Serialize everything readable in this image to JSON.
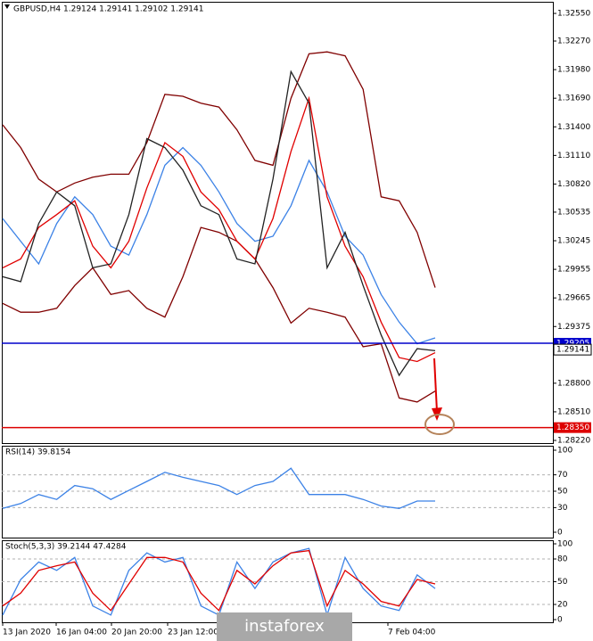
{
  "chart_data": [
    {
      "type": "line",
      "title": "GBPUSD,H4  1.29124 1.29141 1.29102 1.29141",
      "ylim": [
        1.28193,
        1.32668
      ],
      "yticks": [
        {
          "value": 1.3255,
          "label": "1.32550"
        },
        {
          "value": 1.3227,
          "label": "1.32270"
        },
        {
          "value": 1.3198,
          "label": "1.31980"
        },
        {
          "value": 1.3169,
          "label": "1.31690"
        },
        {
          "value": 1.314,
          "label": "1.31400"
        },
        {
          "value": 1.3111,
          "label": "1.31110"
        },
        {
          "value": 1.3082,
          "label": "1.30820"
        },
        {
          "value": 1.30535,
          "label": "1.30535"
        },
        {
          "value": 1.30245,
          "label": "1.30245"
        },
        {
          "value": 1.29955,
          "label": "1.29955"
        },
        {
          "value": 1.29665,
          "label": "1.29665"
        },
        {
          "value": 1.29375,
          "label": "1.29375"
        },
        {
          "value": 1.288,
          "label": "1.28800"
        },
        {
          "value": 1.2851,
          "label": "1.28510"
        },
        {
          "value": 1.2822,
          "label": "1.28220"
        }
      ],
      "grid": false,
      "levels": [
        {
          "value": 1.29205,
          "label": "1.29205",
          "color": "#0000cc"
        },
        {
          "value": 1.2835,
          "label": "1.28350",
          "color": "#dd0000"
        }
      ],
      "current": {
        "value": 1.29141,
        "label": "1.29141"
      },
      "series": [
        {
          "color": "#800000",
          "values": [
            1.3142,
            1.3119,
            1.3087,
            1.3074,
            1.3083,
            1.3089,
            1.3092,
            1.3092,
            1.3124,
            1.3173,
            1.3171,
            1.3164,
            1.316,
            1.3137,
            1.3106,
            1.3101,
            1.3169,
            1.3214,
            1.3216,
            1.3212,
            1.3178,
            1.3069,
            1.3065,
            1.3033,
            1.2977
          ]
        },
        {
          "color": "#800000",
          "values": [
            1.2961,
            1.2952,
            1.2952,
            1.2956,
            1.2979,
            1.2997,
            1.297,
            1.2974,
            1.2956,
            1.2947,
            1.2988,
            1.3038,
            1.3033,
            1.3024,
            1.3006,
            1.2977,
            1.2941,
            1.2956,
            1.2952,
            1.2947,
            1.2917,
            1.292,
            1.2865,
            1.2861,
            1.2872
          ]
        },
        {
          "color": "#3c82e6",
          "values": [
            1.3047,
            1.3024,
            1.3001,
            1.3042,
            1.3069,
            1.3051,
            1.3019,
            1.301,
            1.3051,
            1.3101,
            1.3119,
            1.3101,
            1.3074,
            1.3042,
            1.3024,
            1.3029,
            1.306,
            1.3106,
            1.3074,
            1.3029,
            1.301,
            1.297,
            1.2942,
            1.292,
            1.2926
          ]
        },
        {
          "color": "#e00000",
          "values": [
            1.2997,
            1.3006,
            1.3038,
            1.3051,
            1.3065,
            1.3019,
            1.2997,
            1.3024,
            1.3078,
            1.3124,
            1.311,
            1.3074,
            1.3056,
            1.3024,
            1.3006,
            1.3047,
            1.3115,
            1.3169,
            1.3069,
            1.3019,
            1.2988,
            1.2942,
            1.2906,
            1.2902,
            1.2911
          ]
        },
        {
          "color": "#222222",
          "values": [
            1.2988,
            1.2983,
            1.3042,
            1.3074,
            1.306,
            1.2997,
            1.3001,
            1.3051,
            1.3128,
            1.3119,
            1.3096,
            1.306,
            1.3051,
            1.3006,
            1.3001,
            1.3087,
            1.3196,
            1.3164,
            1.2997,
            1.3033,
            1.2979,
            1.2929,
            1.2888,
            1.2915,
            1.2913
          ]
        }
      ]
    },
    {
      "type": "line",
      "title": "RSI(14) 39.8154",
      "ylim": [
        0,
        100
      ],
      "yticks": [
        100,
        70,
        50,
        30,
        0
      ],
      "grid": true,
      "series": [
        {
          "color": "#3c82e6",
          "values": [
            29,
            35,
            46,
            40,
            57,
            53,
            40,
            51,
            62,
            73,
            67,
            62,
            57,
            46,
            57,
            62,
            78,
            46,
            46,
            46,
            40,
            32,
            29,
            38,
            38
          ]
        }
      ]
    },
    {
      "type": "line",
      "title": "Stoch(5,3,3) 39.2144 47.4284",
      "ylim": [
        0,
        100
      ],
      "yticks": [
        100,
        80,
        50,
        20,
        0
      ],
      "grid": true,
      "x_tick_labels": [
        "13 Jan 2020",
        "16 Jan 04:00",
        "20 Jan 20:00",
        "23 Jan 12:00",
        "7 Feb 04:00"
      ],
      "series": [
        {
          "color": "#3c82e6",
          "values": [
            6,
            53,
            76,
            65,
            82,
            18,
            6,
            65,
            88,
            76,
            82,
            18,
            6,
            76,
            41,
            76,
            88,
            94,
            6,
            82,
            41,
            18,
            12,
            59,
            41
          ]
        },
        {
          "color": "#e00000",
          "values": [
            18,
            35,
            65,
            71,
            76,
            35,
            12,
            47,
            82,
            82,
            76,
            35,
            12,
            65,
            47,
            71,
            88,
            91,
            18,
            65,
            47,
            24,
            18,
            53,
            47
          ]
        }
      ]
    }
  ],
  "watermark": "instaforex"
}
